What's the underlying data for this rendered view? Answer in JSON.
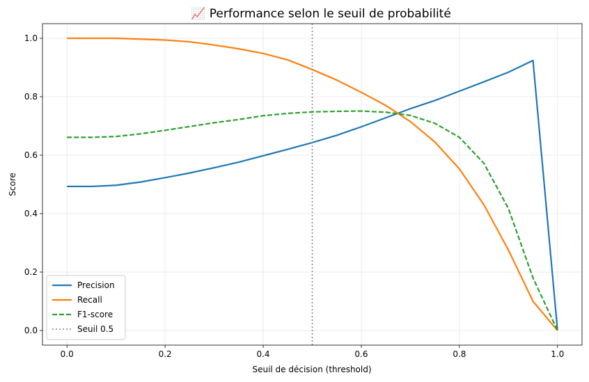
{
  "chart_data": {
    "type": "line",
    "title": "📈 Performance selon le seuil de probabilité",
    "xlabel": "Seuil de décision (threshold)",
    "ylabel": "Score",
    "xlim": [
      -0.05,
      1.05
    ],
    "ylim": [
      -0.05,
      1.05
    ],
    "xticks": [
      "0.0",
      "0.2",
      "0.4",
      "0.6",
      "0.8",
      "1.0"
    ],
    "yticks": [
      "0.0",
      "0.2",
      "0.4",
      "0.6",
      "0.8",
      "1.0"
    ],
    "grid": true,
    "legend_position": "lower-left",
    "x": [
      0.0,
      0.05,
      0.1,
      0.15,
      0.2,
      0.25,
      0.3,
      0.35,
      0.4,
      0.45,
      0.5,
      0.55,
      0.6,
      0.65,
      0.7,
      0.75,
      0.8,
      0.85,
      0.9,
      0.95,
      1.0
    ],
    "series": [
      {
        "name": "Precision",
        "color": "#1f77b4",
        "style": "solid",
        "values": [
          0.493,
          0.493,
          0.497,
          0.508,
          0.523,
          0.539,
          0.557,
          0.576,
          0.598,
          0.62,
          0.643,
          0.668,
          0.697,
          0.728,
          0.759,
          0.787,
          0.819,
          0.851,
          0.884,
          0.924,
          0.0
        ]
      },
      {
        "name": "Recall",
        "color": "#ff7f0e",
        "style": "solid",
        "values": [
          1.0,
          1.0,
          1.0,
          0.997,
          0.994,
          0.988,
          0.977,
          0.964,
          0.948,
          0.926,
          0.893,
          0.857,
          0.815,
          0.77,
          0.715,
          0.645,
          0.553,
          0.43,
          0.275,
          0.1,
          0.0
        ]
      },
      {
        "name": "F1-score",
        "color": "#2ca02c",
        "style": "dashed",
        "values": [
          0.661,
          0.661,
          0.664,
          0.673,
          0.685,
          0.698,
          0.711,
          0.722,
          0.735,
          0.743,
          0.748,
          0.75,
          0.751,
          0.747,
          0.736,
          0.709,
          0.661,
          0.572,
          0.417,
          0.18,
          0.0
        ]
      }
    ],
    "vline": {
      "name": "Seuil 0.5",
      "x": 0.5,
      "color": "#808080",
      "style": "dotted"
    }
  }
}
